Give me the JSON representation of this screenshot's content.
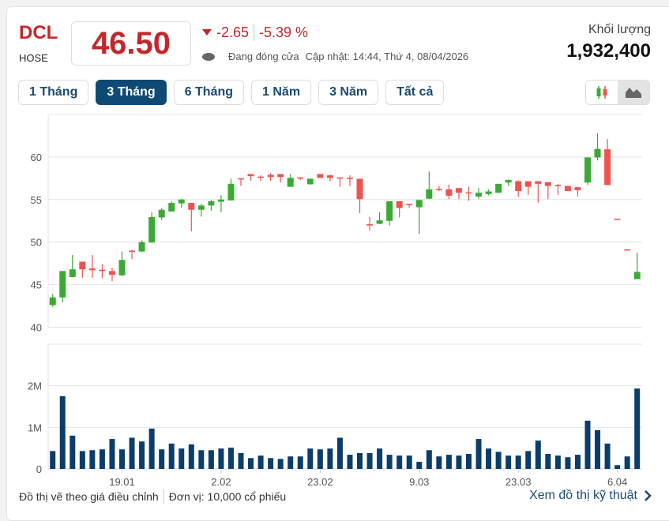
{
  "header": {
    "ticker": "DCL",
    "exchange": "HOSE",
    "price": "46.50",
    "change": "-2.65",
    "change_pct": "-5.39 %",
    "status": "Đang đóng cửa",
    "updated": "Cập nhật: 14:44, Thứ 4, 08/04/2026",
    "volume_label": "Khối lượng",
    "volume_value": "1,932,400"
  },
  "ranges": [
    {
      "label": "1 Tháng",
      "active": false
    },
    {
      "label": "3 Tháng",
      "active": true
    },
    {
      "label": "6 Tháng",
      "active": false
    },
    {
      "label": "1 Năm",
      "active": false
    },
    {
      "label": "3 Năm",
      "active": false
    },
    {
      "label": "Tất cả",
      "active": false
    }
  ],
  "chart_types": [
    {
      "icon": "candlestick-icon",
      "active": false
    },
    {
      "icon": "area-chart-icon",
      "active": true
    }
  ],
  "colors": {
    "up": "#3aaa35",
    "down": "#ef5350",
    "volume": "#0b3d6b",
    "accent": "#c4272b",
    "active_button": "#0f4a75"
  },
  "chart_data": {
    "type": "candlestick",
    "price_axis": {
      "ylim": [
        40,
        65
      ],
      "ticks": [
        "40",
        "45",
        "50",
        "55",
        "60"
      ]
    },
    "volume_axis": {
      "ylim": [
        0,
        3000000
      ],
      "ticks": [
        {
          "label": "0",
          "value": 0
        },
        {
          "label": "1M",
          "value": 1000000
        },
        {
          "label": "2M",
          "value": 2000000
        }
      ]
    },
    "x_ticks": [
      {
        "label": "19.01",
        "index": 7
      },
      {
        "label": "2.02",
        "index": 17
      },
      {
        "label": "23.02",
        "index": 27
      },
      {
        "label": "9.03",
        "index": 37
      },
      {
        "label": "23.03",
        "index": 47
      },
      {
        "label": "6.04",
        "index": 57
      }
    ],
    "grid": true,
    "ohlc": [
      [
        42.6,
        43.9,
        42.4,
        43.5
      ],
      [
        43.5,
        46.6,
        42.9,
        46.6
      ],
      [
        45.9,
        48.5,
        45.9,
        46.8
      ],
      [
        47.7,
        47.7,
        45.8,
        46.8
      ],
      [
        46.9,
        48.5,
        45.8,
        46.7
      ],
      [
        46.75,
        47.4,
        45.75,
        46.6
      ],
      [
        46.6,
        47.0,
        45.4,
        46.15
      ],
      [
        46.1,
        48.9,
        46.0,
        47.9
      ],
      [
        49.0,
        49.05,
        48.0,
        48.9
      ],
      [
        48.9,
        50.2,
        48.8,
        50.0
      ],
      [
        49.95,
        53.5,
        49.95,
        52.95
      ],
      [
        52.9,
        54.0,
        52.6,
        53.8
      ],
      [
        53.6,
        54.8,
        53.6,
        54.6
      ],
      [
        54.55,
        55.1,
        54.05,
        55.0
      ],
      [
        54.6,
        54.6,
        51.25,
        53.8
      ],
      [
        53.8,
        54.5,
        53.0,
        54.3
      ],
      [
        54.3,
        54.95,
        53.7,
        54.8
      ],
      [
        54.75,
        55.5,
        53.5,
        55.0
      ],
      [
        54.9,
        57.45,
        54.9,
        56.85
      ],
      [
        57.5,
        57.5,
        56.6,
        57.4
      ],
      [
        58.0,
        58.0,
        57.2,
        57.75
      ],
      [
        57.7,
        57.85,
        57.2,
        57.6
      ],
      [
        57.9,
        58.1,
        57.2,
        57.65
      ],
      [
        58.0,
        58.0,
        57.0,
        57.65
      ],
      [
        56.5,
        58.0,
        56.5,
        57.55
      ],
      [
        57.6,
        57.65,
        57.3,
        57.45
      ],
      [
        56.8,
        57.45,
        56.75,
        57.45
      ],
      [
        58.0,
        58.0,
        57.55,
        57.55
      ],
      [
        57.85,
        57.9,
        57.15,
        57.55
      ],
      [
        57.6,
        57.6,
        56.5,
        57.5
      ],
      [
        57.55,
        57.85,
        56.6,
        57.45
      ],
      [
        57.45,
        57.45,
        53.4,
        55.05
      ],
      [
        52.1,
        52.95,
        51.35,
        51.95
      ],
      [
        52.15,
        53.5,
        52.1,
        52.55
      ],
      [
        52.5,
        54.8,
        51.95,
        54.8
      ],
      [
        54.8,
        54.8,
        52.9,
        54.0
      ],
      [
        54.5,
        54.5,
        54.05,
        54.35
      ],
      [
        54.1,
        54.95,
        50.95,
        54.95
      ],
      [
        55.1,
        58.3,
        55.05,
        56.2
      ],
      [
        56.25,
        56.6,
        56.0,
        56.2
      ],
      [
        56.2,
        56.75,
        55.05,
        55.45
      ],
      [
        56.35,
        56.35,
        55.05,
        55.8
      ],
      [
        55.85,
        56.5,
        54.85,
        55.75
      ],
      [
        55.35,
        56.35,
        55.05,
        55.8
      ],
      [
        55.65,
        56.2,
        55.5,
        55.95
      ],
      [
        55.8,
        56.85,
        55.8,
        56.85
      ],
      [
        57.0,
        57.35,
        56.6,
        57.3
      ],
      [
        57.15,
        57.25,
        55.35,
        56.0
      ],
      [
        57.15,
        57.15,
        55.55,
        56.5
      ],
      [
        57.15,
        57.15,
        54.65,
        56.85
      ],
      [
        57.05,
        57.05,
        55.05,
        56.6
      ],
      [
        56.7,
        56.85,
        55.55,
        56.6
      ],
      [
        56.6,
        56.6,
        56.0,
        56.0
      ],
      [
        56.45,
        56.5,
        55.35,
        56.1
      ],
      [
        57.0,
        60.0,
        56.7,
        59.95
      ],
      [
        59.95,
        62.8,
        59.6,
        60.95
      ],
      [
        60.9,
        62.1,
        56.7,
        56.7
      ],
      [
        52.75,
        52.75,
        52.75,
        52.75
      ],
      [
        49.15,
        49.15,
        49.15,
        49.15
      ],
      [
        45.65,
        48.75,
        45.65,
        46.5
      ]
    ],
    "volume": [
      430000,
      1750000,
      800000,
      430000,
      450000,
      470000,
      720000,
      470000,
      750000,
      660000,
      970000,
      470000,
      610000,
      490000,
      590000,
      450000,
      450000,
      490000,
      510000,
      380000,
      260000,
      320000,
      260000,
      240000,
      300000,
      300000,
      490000,
      470000,
      490000,
      750000,
      340000,
      380000,
      380000,
      490000,
      340000,
      320000,
      320000,
      170000,
      450000,
      300000,
      340000,
      320000,
      360000,
      720000,
      490000,
      410000,
      320000,
      320000,
      430000,
      680000,
      360000,
      320000,
      280000,
      340000,
      1160000,
      930000,
      610000,
      90000,
      300000,
      1932400
    ]
  },
  "footer": {
    "note": "Đồ thị vẽ theo giá điều chỉnh",
    "unit": "Đơn vị: 10,000 cổ phiếu",
    "link": "Xem đồ thị kỹ thuật"
  }
}
